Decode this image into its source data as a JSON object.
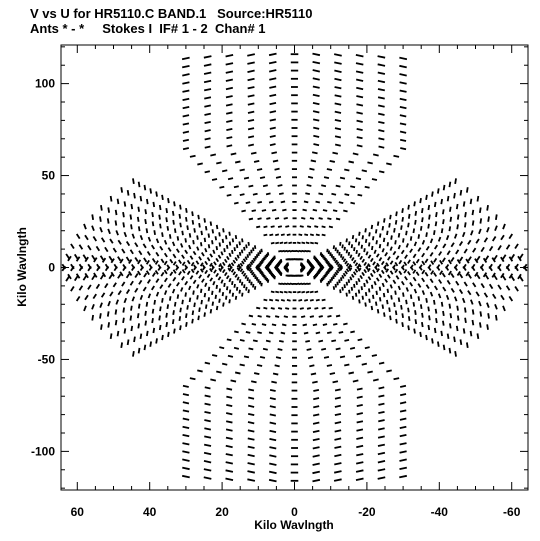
{
  "chart_data": {
    "type": "scatter",
    "title": "V vs U for HR5110.C BAND.1   Source:HR5110",
    "subtitle": "Ants * - *     Stokes I  IF# 1 - 2  Chan# 1",
    "xlabel": "Kilo Wavlngth",
    "ylabel": "Kilo Wavlngth",
    "xlim": [
      64.5,
      -64.5
    ],
    "ylim": [
      -121,
      121
    ],
    "xticks": [
      "60",
      "40",
      "20",
      "0",
      "-20",
      "-40",
      "-60"
    ],
    "yticks": [
      "100",
      "50",
      "0",
      "-50",
      "-100"
    ],
    "grid": false,
    "marker_color": "#000000",
    "arms": [
      {
        "name": "",
        "angle_deg": 90,
        "length": 116
      },
      {
        "name": "",
        "angle_deg": 270,
        "length": 116
      },
      {
        "name": "",
        "angle_deg": 159,
        "length": 62
      },
      {
        "name": "",
        "angle_deg": 339,
        "length": 62
      },
      {
        "name": "",
        "angle_deg": 21,
        "length": 62
      },
      {
        "name": "",
        "angle_deg": 201,
        "length": 62
      }
    ]
  }
}
